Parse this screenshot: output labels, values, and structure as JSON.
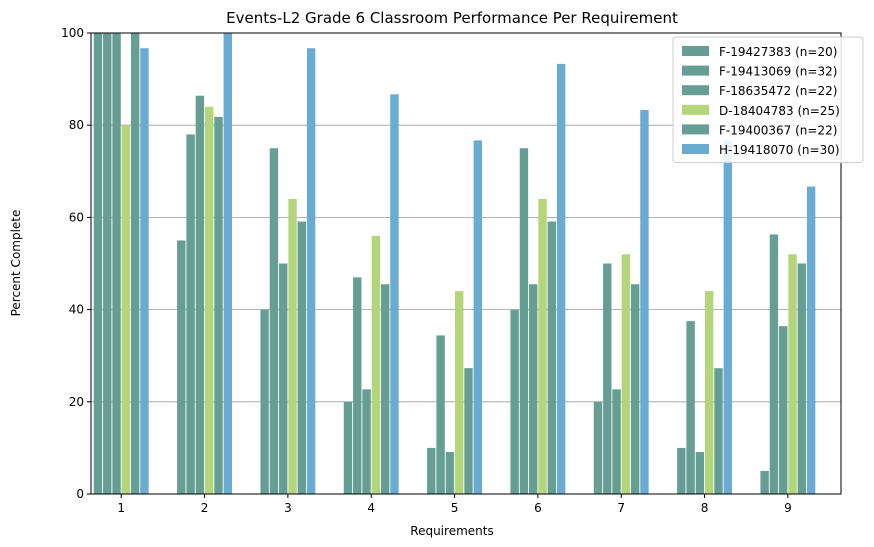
{
  "chart_data": {
    "type": "bar",
    "title": "Events-L2 Grade 6 Classroom Performance Per Requirement",
    "xlabel": "Requirements",
    "ylabel": "Percent Complete",
    "ylim": [
      0,
      100
    ],
    "yticks": [
      0,
      20,
      40,
      60,
      80,
      100
    ],
    "grid": "horizontal",
    "legend_position": "top-right",
    "categories": [
      "1",
      "2",
      "3",
      "4",
      "5",
      "6",
      "7",
      "8",
      "9"
    ],
    "series": [
      {
        "name": "F-19427383 (n=20)",
        "color": "#669e94",
        "values": [
          100,
          55,
          40,
          20,
          10,
          40,
          20,
          10,
          5
        ]
      },
      {
        "name": "F-19413069 (n=32)",
        "color": "#669e94",
        "values": [
          100,
          78,
          75,
          47,
          34.4,
          75,
          50,
          37.5,
          56.3
        ]
      },
      {
        "name": "F-18635472 (n=22)",
        "color": "#669e94",
        "values": [
          100,
          86.4,
          50,
          22.7,
          9.1,
          45.5,
          22.7,
          9.1,
          36.4
        ]
      },
      {
        "name": "D-18404783 (n=25)",
        "color": "#b5d57b",
        "values": [
          80,
          84,
          64,
          56,
          44,
          64,
          52,
          44,
          52
        ]
      },
      {
        "name": "F-19400367 (n=22)",
        "color": "#669e94",
        "values": [
          100,
          81.8,
          59.1,
          45.5,
          27.3,
          59.1,
          45.5,
          27.3,
          50
        ]
      },
      {
        "name": "H-19418070 (n=30)",
        "color": "#6aabd2",
        "values": [
          96.7,
          100,
          96.7,
          86.7,
          76.7,
          93.3,
          83.3,
          76.7,
          66.7
        ]
      }
    ]
  }
}
